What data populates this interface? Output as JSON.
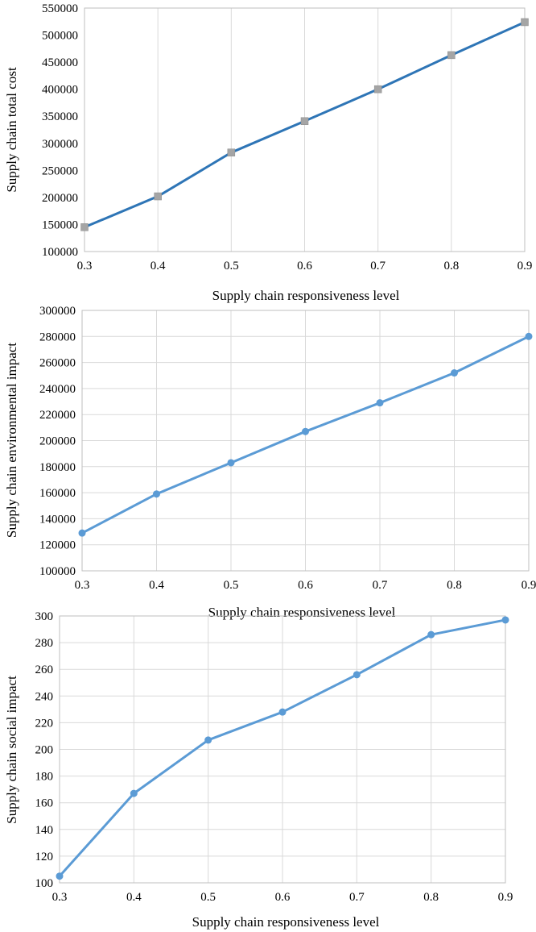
{
  "chart_data": [
    {
      "type": "line",
      "title": "",
      "xlabel": "Supply chain responsiveness level",
      "ylabel": "Supply chain total cost",
      "x": [
        0.3,
        0.4,
        0.5,
        0.6,
        0.7,
        0.8,
        0.9
      ],
      "xlim": [
        0.3,
        0.9
      ],
      "ylim": [
        100000,
        550000
      ],
      "x_ticks": [
        "0.3",
        "0.4",
        "0.5",
        "0.6",
        "0.7",
        "0.8",
        "0.9"
      ],
      "y_ticks": [
        "100000",
        "150000",
        "200000",
        "250000",
        "300000",
        "350000",
        "400000",
        "450000",
        "500000",
        "550000"
      ],
      "grid": "vertical",
      "series": [
        {
          "values": [
            145000,
            202000,
            283000,
            341000,
            400000,
            463000,
            524000
          ],
          "line_color": "#2e75b6",
          "marker_color": "#a5a5a5",
          "marker": "square"
        }
      ]
    },
    {
      "type": "line",
      "title": "",
      "xlabel": "Supply chain responsiveness level",
      "ylabel": "Supply chain environmental impact",
      "x": [
        0.3,
        0.4,
        0.5,
        0.6,
        0.7,
        0.8,
        0.9
      ],
      "xlim": [
        0.3,
        0.9
      ],
      "ylim": [
        100000,
        300000
      ],
      "x_ticks": [
        "0.3",
        "0.4",
        "0.5",
        "0.6",
        "0.7",
        "0.8",
        "0.9"
      ],
      "y_ticks": [
        "100000",
        "120000",
        "140000",
        "160000",
        "180000",
        "200000",
        "220000",
        "240000",
        "260000",
        "280000",
        "300000"
      ],
      "grid": "both",
      "series": [
        {
          "values": [
            129000,
            159000,
            183000,
            207000,
            229000,
            252000,
            280000
          ],
          "line_color": "#5b9bd5",
          "marker_color": "#5b9bd5",
          "marker": "circle"
        }
      ]
    },
    {
      "type": "line",
      "title": "",
      "xlabel": "Supply chain responsiveness level",
      "ylabel": "Supply chain social impact",
      "x": [
        0.3,
        0.4,
        0.5,
        0.6,
        0.7,
        0.8,
        0.9
      ],
      "xlim": [
        0.3,
        0.9
      ],
      "ylim": [
        100,
        300
      ],
      "x_ticks": [
        "0.3",
        "0.4",
        "0.5",
        "0.6",
        "0.7",
        "0.8",
        "0.9"
      ],
      "y_ticks": [
        "100",
        "120",
        "140",
        "160",
        "180",
        "200",
        "220",
        "240",
        "260",
        "280",
        "300"
      ],
      "grid": "both",
      "series": [
        {
          "values": [
            105,
            167,
            207,
            228,
            256,
            286,
            297
          ],
          "line_color": "#5b9bd5",
          "marker_color": "#5b9bd5",
          "marker": "circle"
        }
      ]
    }
  ]
}
